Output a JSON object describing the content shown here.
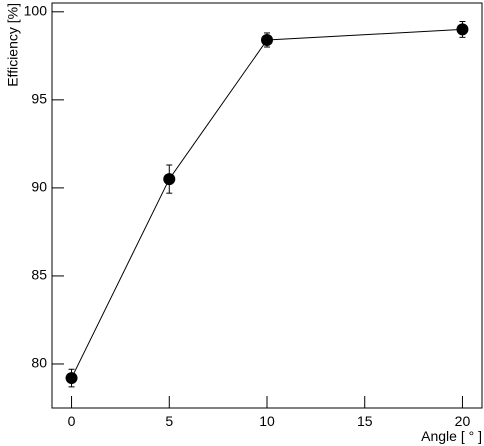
{
  "chart_data": {
    "type": "line",
    "x_label": "Angle [ ° ]",
    "y_label": "Efficiency [%]",
    "x": [
      0,
      5,
      10,
      20
    ],
    "series": [
      {
        "color": "#000000",
        "values": [
          79.2,
          90.5,
          98.4,
          99.0
        ],
        "errors": [
          0.5,
          0.8,
          0.4,
          0.45
        ]
      }
    ],
    "xlim": [
      -1,
      21
    ],
    "xticks": [
      0,
      5,
      10,
      15,
      20
    ],
    "ylim": [
      77.5,
      100.5
    ],
    "yticks": [
      80,
      85,
      90,
      95,
      100
    ],
    "grid": false
  }
}
